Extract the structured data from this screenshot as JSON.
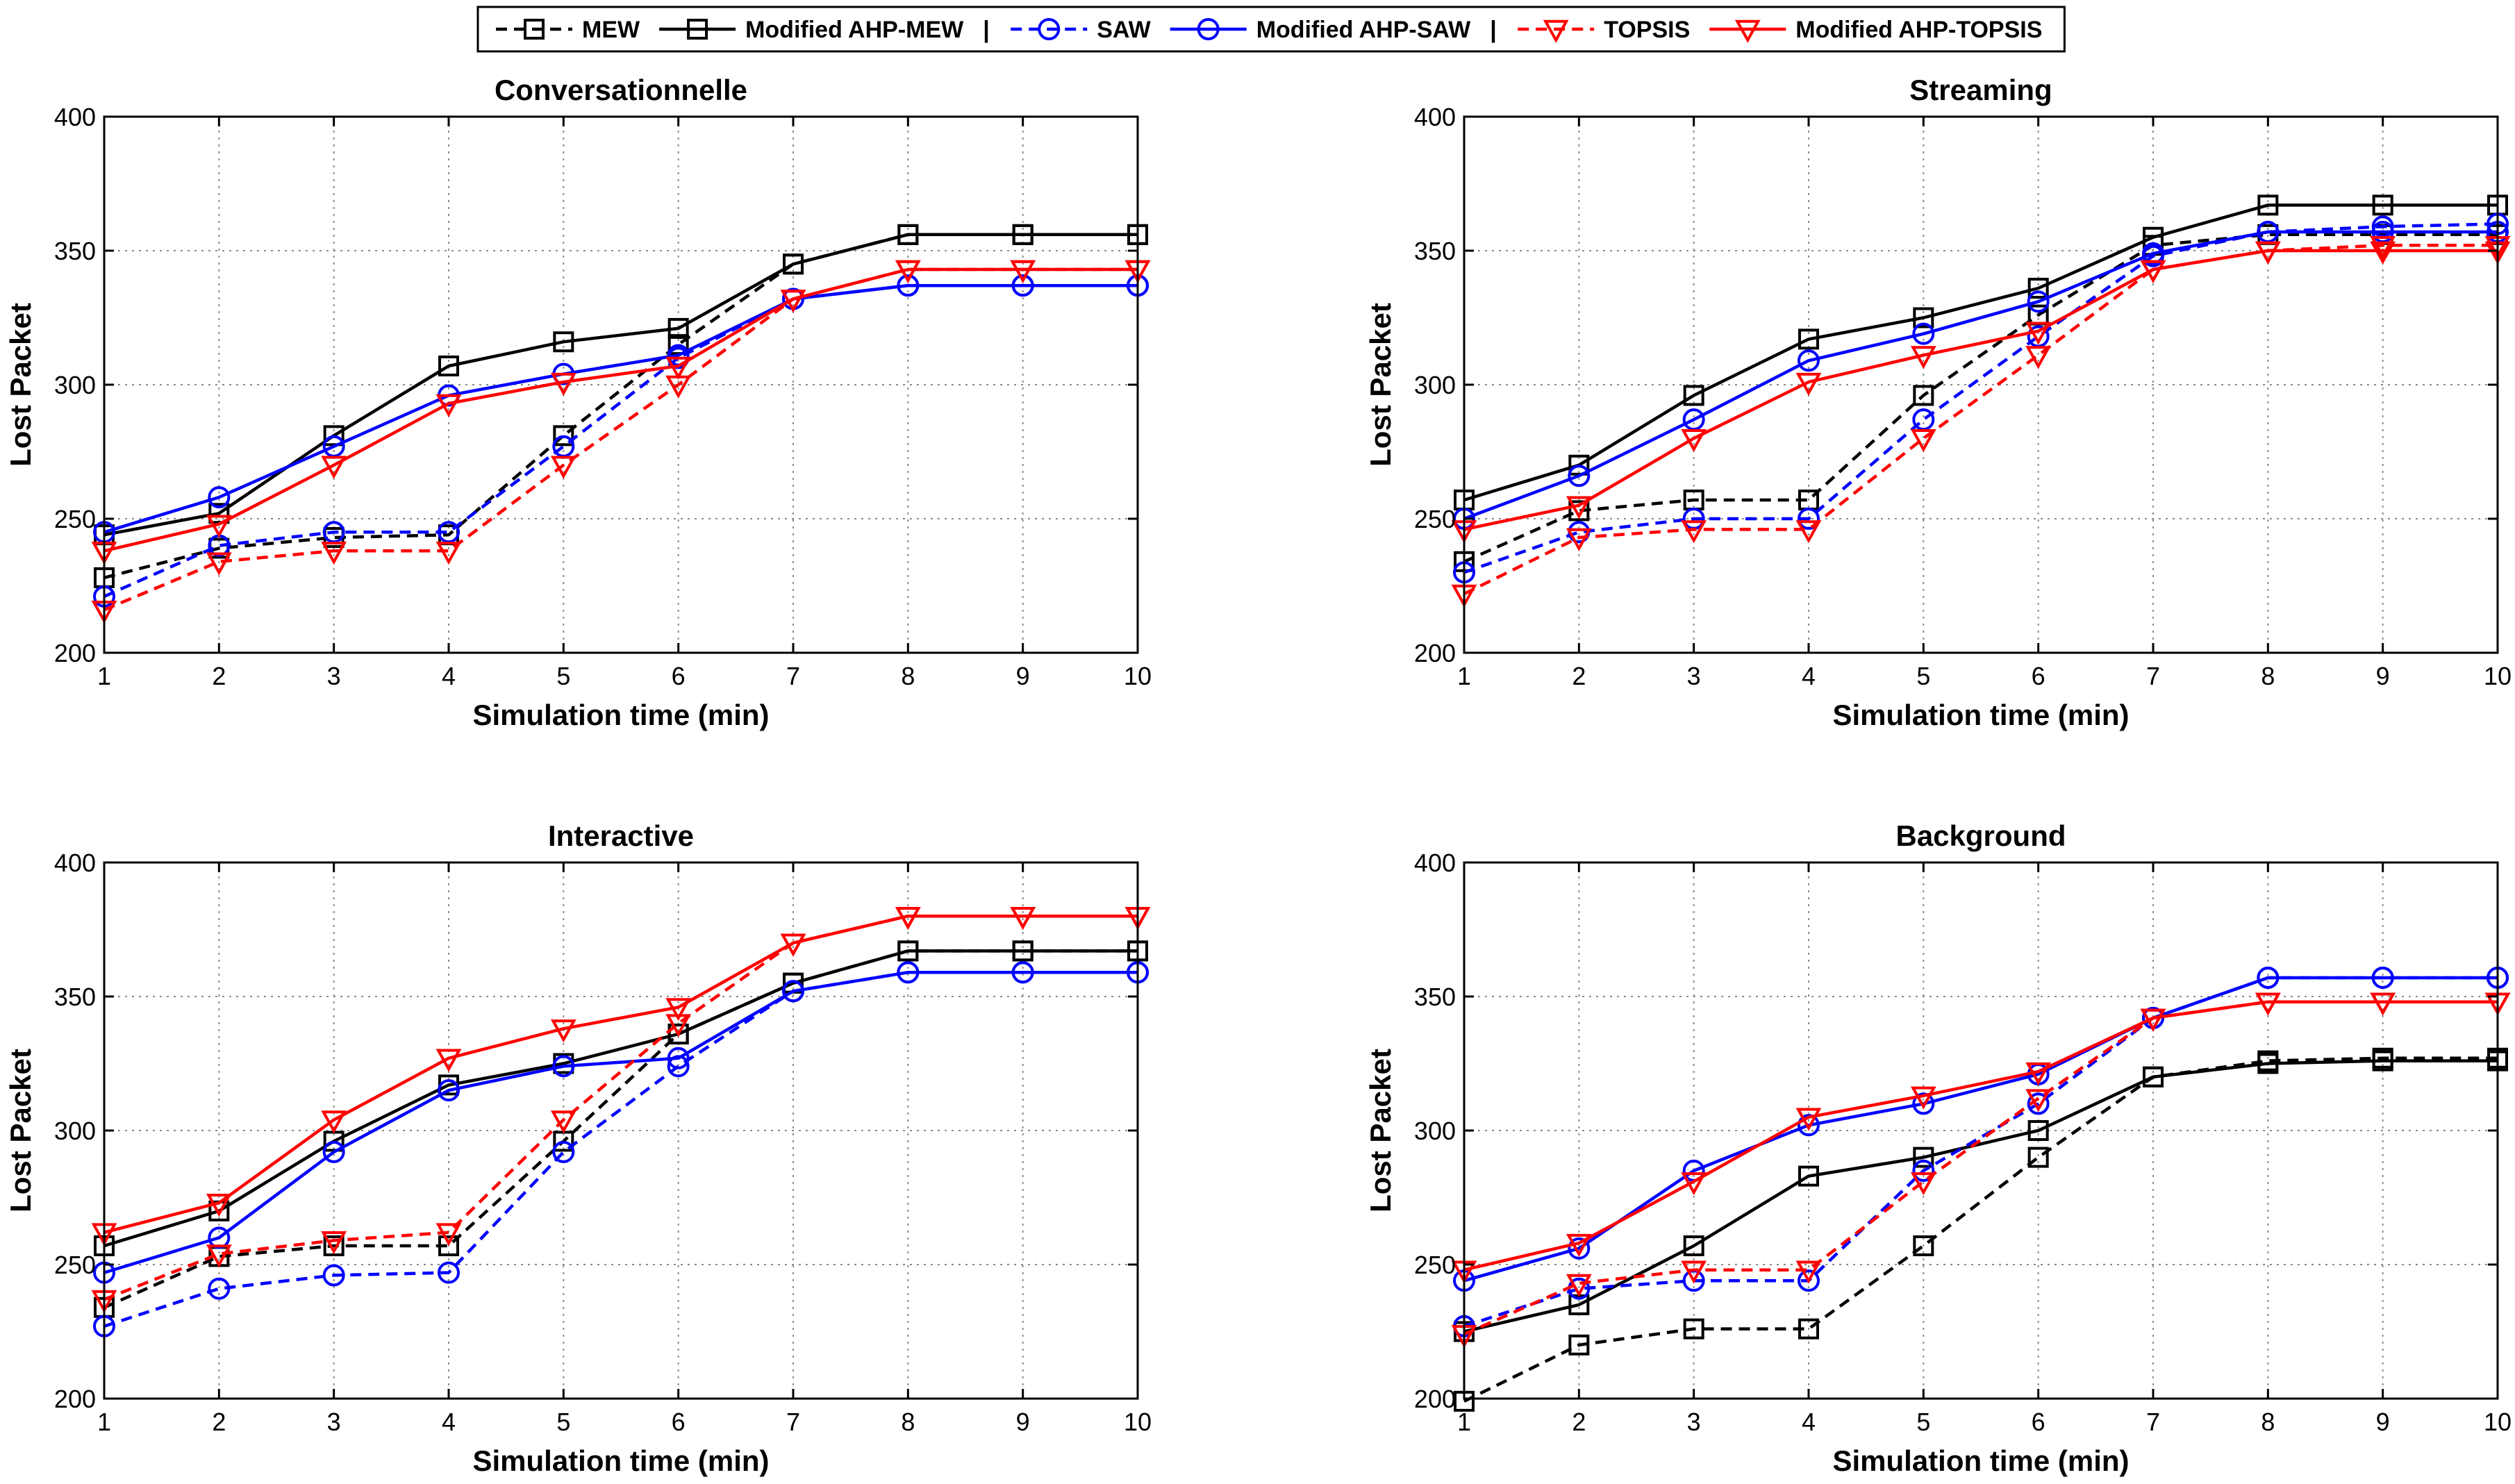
{
  "legend": {
    "separator": "|",
    "entries": [
      {
        "label": "MEW",
        "color": "#000000",
        "dash": true,
        "marker": "square"
      },
      {
        "label": "Modified AHP-MEW",
        "color": "#000000",
        "dash": false,
        "marker": "square"
      },
      {
        "label": "SAW",
        "color": "#0000ff",
        "dash": true,
        "marker": "circle"
      },
      {
        "label": "Modified AHP-SAW",
        "color": "#0000ff",
        "dash": false,
        "marker": "circle"
      },
      {
        "label": "TOPSIS",
        "color": "#ff0000",
        "dash": true,
        "marker": "triangle"
      },
      {
        "label": "Modified AHP-TOPSIS",
        "color": "#ff0000",
        "dash": false,
        "marker": "triangle"
      }
    ]
  },
  "chart_data": [
    {
      "type": "line",
      "title": "Conversationnelle",
      "xlabel": "Simulation time (min)",
      "ylabel": "Lost Packet",
      "xlim": [
        1,
        10
      ],
      "ylim": [
        200,
        400
      ],
      "grid": true,
      "x": [
        1,
        2,
        3,
        4,
        5,
        6,
        7,
        8,
        9,
        10
      ],
      "xticks": [
        "1",
        "2",
        "3",
        "4",
        "5",
        "6",
        "7",
        "8",
        "9",
        "10"
      ],
      "yticks": [
        "200",
        "250",
        "300",
        "350",
        "400"
      ],
      "series": [
        {
          "name": "MEW",
          "values": [
            228,
            239,
            243,
            244,
            281,
            315,
            345,
            356,
            356,
            356
          ]
        },
        {
          "name": "Modified AHP-MEW",
          "values": [
            244,
            252,
            281,
            307,
            316,
            321,
            345,
            356,
            356,
            356
          ]
        },
        {
          "name": "SAW",
          "values": [
            221,
            240,
            245,
            245,
            277,
            310,
            332,
            337,
            337,
            337
          ]
        },
        {
          "name": "Modified AHP-SAW",
          "values": [
            245,
            258,
            277,
            296,
            304,
            311,
            332,
            337,
            337,
            337
          ]
        },
        {
          "name": "TOPSIS",
          "values": [
            216,
            234,
            238,
            238,
            270,
            300,
            332,
            343,
            343,
            343
          ]
        },
        {
          "name": "Modified AHP-TOPSIS",
          "values": [
            238,
            248,
            270,
            293,
            301,
            307,
            332,
            343,
            343,
            343
          ]
        }
      ]
    },
    {
      "type": "line",
      "title": "Streaming",
      "xlabel": "Simulation time (min)",
      "ylabel": "Lost Packet",
      "xlim": [
        1,
        10
      ],
      "ylim": [
        200,
        400
      ],
      "grid": true,
      "x": [
        1,
        2,
        3,
        4,
        5,
        6,
        7,
        8,
        9,
        10
      ],
      "xticks": [
        "1",
        "2",
        "3",
        "4",
        "5",
        "6",
        "7",
        "8",
        "9",
        "10"
      ],
      "yticks": [
        "200",
        "250",
        "300",
        "350",
        "400"
      ],
      "series": [
        {
          "name": "MEW",
          "values": [
            234,
            253,
            257,
            257,
            296,
            326,
            352,
            356,
            356,
            356
          ]
        },
        {
          "name": "Modified AHP-MEW",
          "values": [
            257,
            270,
            296,
            317,
            325,
            336,
            355,
            367,
            367,
            367
          ]
        },
        {
          "name": "SAW",
          "values": [
            230,
            245,
            250,
            250,
            287,
            318,
            348,
            357,
            359,
            360
          ]
        },
        {
          "name": "Modified AHP-SAW",
          "values": [
            250,
            266,
            287,
            309,
            319,
            331,
            349,
            357,
            357,
            357
          ]
        },
        {
          "name": "TOPSIS",
          "values": [
            222,
            243,
            246,
            246,
            280,
            311,
            343,
            350,
            352,
            352
          ]
        },
        {
          "name": "Modified AHP-TOPSIS",
          "values": [
            246,
            255,
            280,
            301,
            311,
            320,
            343,
            350,
            350,
            350
          ]
        }
      ]
    },
    {
      "type": "line",
      "title": "Interactive",
      "xlabel": "Simulation time (min)",
      "ylabel": "Lost Packet",
      "xlim": [
        1,
        10
      ],
      "ylim": [
        200,
        400
      ],
      "grid": true,
      "x": [
        1,
        2,
        3,
        4,
        5,
        6,
        7,
        8,
        9,
        10
      ],
      "xticks": [
        "1",
        "2",
        "3",
        "4",
        "5",
        "6",
        "7",
        "8",
        "9",
        "10"
      ],
      "yticks": [
        "200",
        "250",
        "300",
        "350",
        "400"
      ],
      "series": [
        {
          "name": "MEW",
          "values": [
            234,
            253,
            257,
            257,
            296,
            336,
            355,
            367,
            367,
            367
          ]
        },
        {
          "name": "Modified AHP-MEW",
          "values": [
            257,
            270,
            296,
            317,
            325,
            336,
            355,
            367,
            367,
            367
          ]
        },
        {
          "name": "SAW",
          "values": [
            227,
            241,
            246,
            247,
            292,
            324,
            352,
            359,
            359,
            359
          ]
        },
        {
          "name": "Modified AHP-SAW",
          "values": [
            247,
            260,
            292,
            315,
            324,
            327,
            352,
            359,
            359,
            359
          ]
        },
        {
          "name": "TOPSIS",
          "values": [
            237,
            254,
            259,
            262,
            304,
            340,
            370,
            380,
            380,
            380
          ]
        },
        {
          "name": "Modified AHP-TOPSIS",
          "values": [
            262,
            273,
            304,
            327,
            338,
            346,
            370,
            380,
            380,
            380
          ]
        }
      ]
    },
    {
      "type": "line",
      "title": "Background",
      "xlabel": "Simulation time (min)",
      "ylabel": "Lost Packet",
      "xlim": [
        1,
        10
      ],
      "ylim": [
        200,
        400
      ],
      "grid": true,
      "x": [
        1,
        2,
        3,
        4,
        5,
        6,
        7,
        8,
        9,
        10
      ],
      "xticks": [
        "1",
        "2",
        "3",
        "4",
        "5",
        "6",
        "7",
        "8",
        "9",
        "10"
      ],
      "yticks": [
        "200",
        "250",
        "300",
        "350",
        "400"
      ],
      "series": [
        {
          "name": "MEW",
          "values": [
            199,
            220,
            226,
            226,
            257,
            290,
            320,
            326,
            327,
            327
          ]
        },
        {
          "name": "Modified AHP-MEW",
          "values": [
            225,
            235,
            257,
            283,
            290,
            300,
            320,
            325,
            326,
            326
          ]
        },
        {
          "name": "SAW",
          "values": [
            227,
            241,
            244,
            244,
            285,
            310,
            342,
            357,
            357,
            357
          ]
        },
        {
          "name": "Modified AHP-SAW",
          "values": [
            244,
            256,
            285,
            302,
            310,
            321,
            342,
            357,
            357,
            357
          ]
        },
        {
          "name": "TOPSIS",
          "values": [
            224,
            243,
            248,
            248,
            281,
            312,
            342,
            348,
            348,
            348
          ]
        },
        {
          "name": "Modified AHP-TOPSIS",
          "values": [
            248,
            258,
            281,
            305,
            313,
            322,
            342,
            348,
            348,
            348
          ]
        }
      ]
    }
  ]
}
